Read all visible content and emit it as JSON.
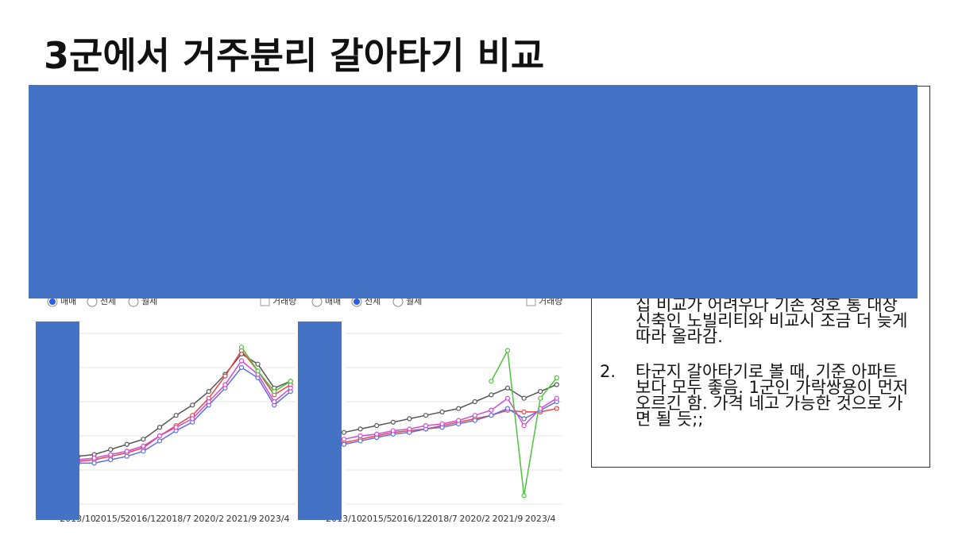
{
  "title": "3군에서 거주분리 갈아타기 비교",
  "notes": {
    "item1_text": "집 비교가 어려우나 기존 청호 통 대장 신축인 노빌리티와 비교시 조금 더 늦게 따라 올라감.",
    "item2": {
      "number": "2.",
      "text": "타군지 갈아타기로 볼 때, 기준 아파트 보다 모두 좋음. 1군인 가락쌍용이 먼저 오르긴 함. 가격 네고 가능한 것으로 가면 될 듯;;"
    }
  },
  "chart_data": [
    {
      "type": "line",
      "controls": {
        "radios": [
          "매매",
          "전세",
          "월세"
        ],
        "selected": 0,
        "checkbox": "거래량"
      },
      "categories": [
        "2013/10",
        null,
        "2015/5",
        null,
        "2016/12",
        null,
        "2018/7",
        null,
        "2020/2",
        null,
        "2021/9",
        null,
        "2023/4",
        null
      ],
      "ylim": [
        0,
        100
      ],
      "yticks": [
        0,
        20,
        40,
        60,
        80,
        100
      ],
      "grid": true,
      "series": [
        {
          "color": "#555555",
          "values": [
            28,
            29,
            32,
            35,
            38,
            45,
            52,
            58,
            66,
            76,
            88,
            82,
            68,
            72
          ]
        },
        {
          "color": "#e84545",
          "values": [
            25,
            26,
            28,
            30,
            33,
            40,
            46,
            52,
            62,
            75,
            90,
            78,
            64,
            70
          ]
        },
        {
          "color": "#5a6ee8",
          "values": [
            24,
            24,
            26,
            28,
            31,
            37,
            43,
            48,
            58,
            68,
            80,
            74,
            58,
            66
          ]
        },
        {
          "color": "#d24ad8",
          "values": [
            26,
            27,
            29,
            31,
            34,
            40,
            45,
            50,
            60,
            70,
            84,
            76,
            60,
            68
          ]
        },
        {
          "color": "#4cc43c",
          "values": [
            null,
            null,
            null,
            null,
            null,
            null,
            null,
            null,
            null,
            null,
            92,
            78,
            66,
            72
          ]
        }
      ]
    },
    {
      "type": "line",
      "controls": {
        "radios": [
          "매매",
          "전세",
          "월세"
        ],
        "selected": 1,
        "checkbox": "거래량"
      },
      "categories": [
        "2013/10",
        null,
        "2015/5",
        null,
        "2016/12",
        null,
        "2018/7",
        null,
        "2020/2",
        null,
        "2021/9",
        null,
        "2023/4",
        null
      ],
      "ylim": [
        0,
        100
      ],
      "yticks": [
        0,
        20,
        40,
        60,
        80,
        100
      ],
      "grid": true,
      "series": [
        {
          "color": "#555555",
          "values": [
            42,
            44,
            46,
            48,
            50,
            52,
            54,
            56,
            60,
            64,
            68,
            62,
            66,
            70
          ]
        },
        {
          "color": "#e84545",
          "values": [
            36,
            38,
            40,
            42,
            43,
            44,
            46,
            48,
            50,
            52,
            55,
            54,
            54,
            56
          ]
        },
        {
          "color": "#5a6ee8",
          "values": [
            35,
            37,
            39,
            41,
            42,
            44,
            45,
            47,
            49,
            52,
            56,
            50,
            55,
            60
          ]
        },
        {
          "color": "#d24ad8",
          "values": [
            38,
            40,
            41,
            43,
            44,
            46,
            47,
            49,
            52,
            55,
            62,
            46,
            56,
            62
          ]
        },
        {
          "color": "#4cc43c",
          "values": [
            null,
            null,
            null,
            null,
            null,
            null,
            null,
            null,
            null,
            72,
            90,
            5,
            62,
            74
          ]
        }
      ]
    }
  ]
}
